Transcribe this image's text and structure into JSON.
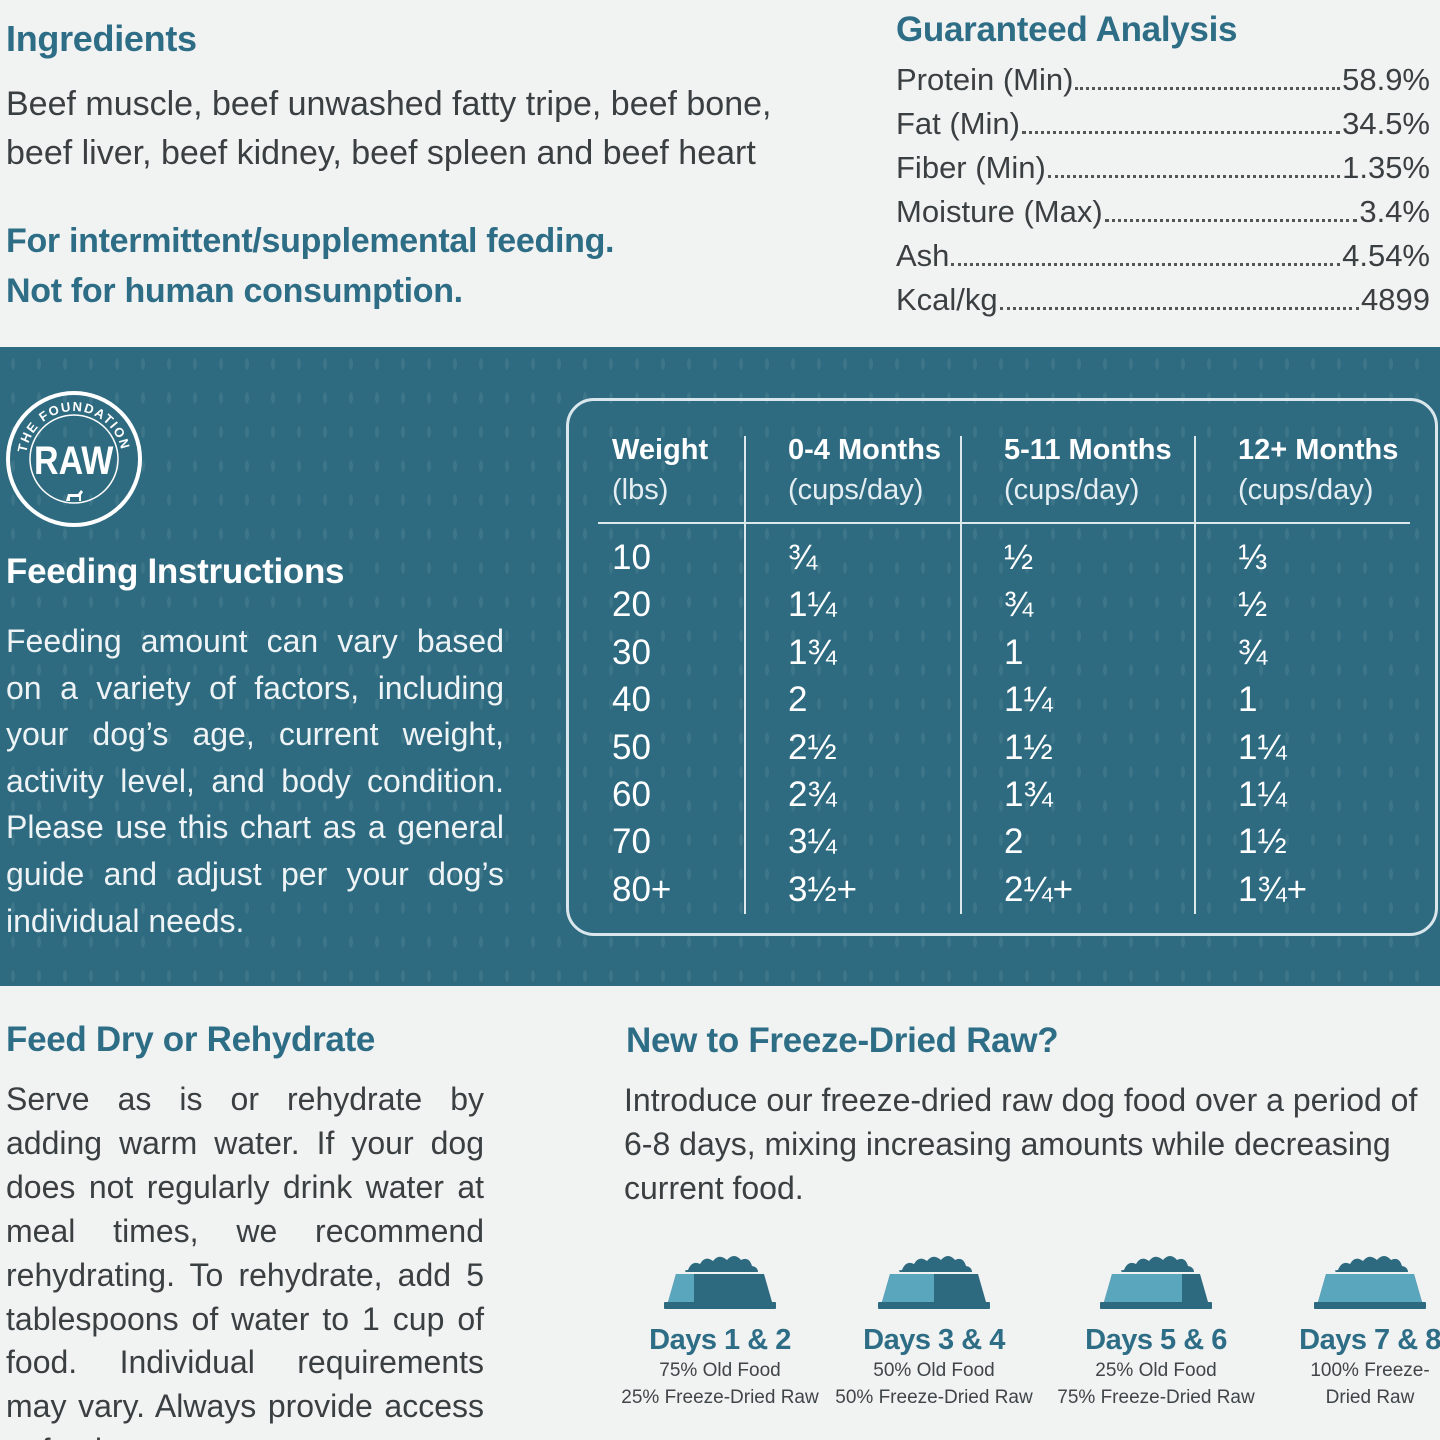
{
  "ingredients": {
    "title": "Ingredients",
    "text": "Beef muscle, beef unwashed fatty tripe, beef bone, beef liver, beef kidney, beef spleen and beef heart",
    "note_line1": "For intermittent/supplemental feeding.",
    "note_line2": "Not for human consumption."
  },
  "guaranteed_analysis": {
    "title": "Guaranteed Analysis",
    "items": [
      {
        "label": "Protein (Min)",
        "value": "58.9%"
      },
      {
        "label": "Fat (Min)",
        "value": "34.5%"
      },
      {
        "label": "Fiber (Min)",
        "value": "1.35%"
      },
      {
        "label": "Moisture (Max)",
        "value": "3.4%"
      },
      {
        "label": "Ash",
        "value": "4.54%"
      },
      {
        "label": "Kcal/kg",
        "value": "4899"
      }
    ]
  },
  "logo": {
    "ring_text": "THE FOUNDATION",
    "center_text": "RAW"
  },
  "feeding": {
    "title": "Feeding Instructions",
    "text": "Feeding amount can vary based on a variety of factors, including your dog’s age, current weight, activity level, and body condition. Please use this chart as a general guide and adjust per your dog’s individual needs.",
    "columns": [
      {
        "label": "Weight",
        "sub": "(lbs)"
      },
      {
        "label": "0-4 Months",
        "sub": "(cups/day)"
      },
      {
        "label": "5-11 Months",
        "sub": "(cups/day)"
      },
      {
        "label": "12+ Months",
        "sub": "(cups/day)"
      }
    ],
    "rows": [
      [
        "10",
        "¾",
        "½",
        "⅓"
      ],
      [
        "20",
        "1¼",
        "¾",
        "½"
      ],
      [
        "30",
        "1¾",
        "1",
        "¾"
      ],
      [
        "40",
        "2",
        "1¼",
        "1"
      ],
      [
        "50",
        "2½",
        "1½",
        "1¼"
      ],
      [
        "60",
        "2¾",
        "1¾",
        "1¼"
      ],
      [
        "70",
        "3¼",
        "2",
        "1½"
      ],
      [
        "80+",
        "3½+",
        "2¼+",
        "1¾+"
      ]
    ]
  },
  "feed_dry": {
    "title": "Feed Dry or Rehydrate",
    "text": "Serve as is or rehydrate by adding warm water. If your dog does not regularly drink water at meal times, we recommend rehydrating. To rehydrate, add 5 tablespoons of water to 1 cup of food. Individual requirements may vary. Always provide access to fresh water."
  },
  "transition": {
    "title": "New to Freeze-Dried Raw?",
    "text": "Introduce our freeze-dried raw dog food over a period of 6-8 days, mixing increasing amounts while decreasing current food.",
    "stages": [
      {
        "days": "Days 1 & 2",
        "line1": "75% Old Food",
        "line2": "25% Freeze-Dried Raw",
        "new_fraction": 0.25
      },
      {
        "days": "Days 3 & 4",
        "line1": "50% Old Food",
        "line2": "50% Freeze-Dried Raw",
        "new_fraction": 0.5
      },
      {
        "days": "Days 5 & 6",
        "line1": "25% Old Food",
        "line2": "75% Freeze-Dried Raw",
        "new_fraction": 0.75
      },
      {
        "days": "Days 7 & 8",
        "line1": "100% Freeze-",
        "line2": "Dried Raw",
        "new_fraction": 1.0
      }
    ],
    "colors": {
      "dark": "#2d6a80",
      "light": "#5aa6bd"
    }
  }
}
